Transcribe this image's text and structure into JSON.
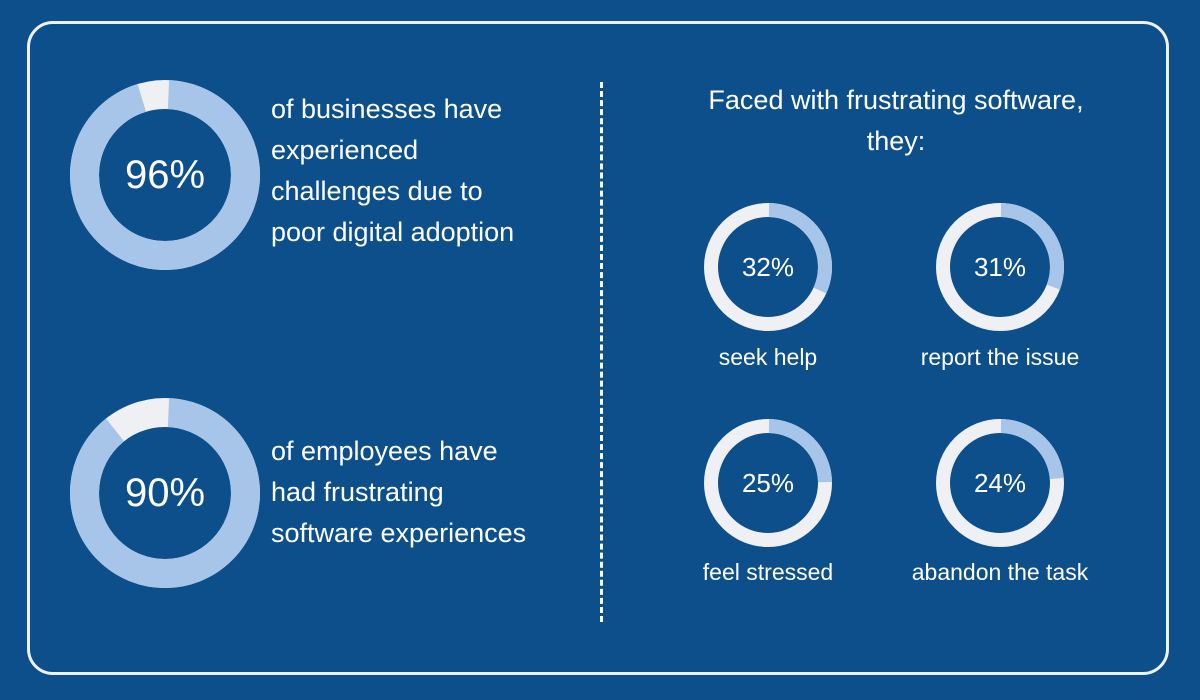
{
  "colors": {
    "background": "#0d4f8b",
    "ring_fill": "#a6c5e8",
    "ring_track": "#eef0f4",
    "text": "#ffffff"
  },
  "chart_data": [
    {
      "type": "donut",
      "value": 96,
      "label": "96%",
      "description": "of businesses have experienced challenges due to poor digital adoption",
      "description_lines": [
        "of businesses have",
        "experienced",
        "challenges due to",
        "poor digital adoption"
      ]
    },
    {
      "type": "donut",
      "value": 90,
      "label": "90%",
      "description": "of employees have had frustrating software experiences",
      "description_lines": [
        "of employees have",
        "had frustrating",
        "software experiences"
      ]
    },
    {
      "type": "donut",
      "title_lines": [
        "Faced with frustrating software,",
        "they:"
      ],
      "items": [
        {
          "value": 32,
          "label": "32%",
          "caption": "seek help"
        },
        {
          "value": 31,
          "label": "31%",
          "caption": "report the issue"
        },
        {
          "value": 25,
          "label": "25%",
          "caption": "feel stressed"
        },
        {
          "value": 24,
          "label": "24%",
          "caption": "abandon the task"
        }
      ]
    }
  ]
}
